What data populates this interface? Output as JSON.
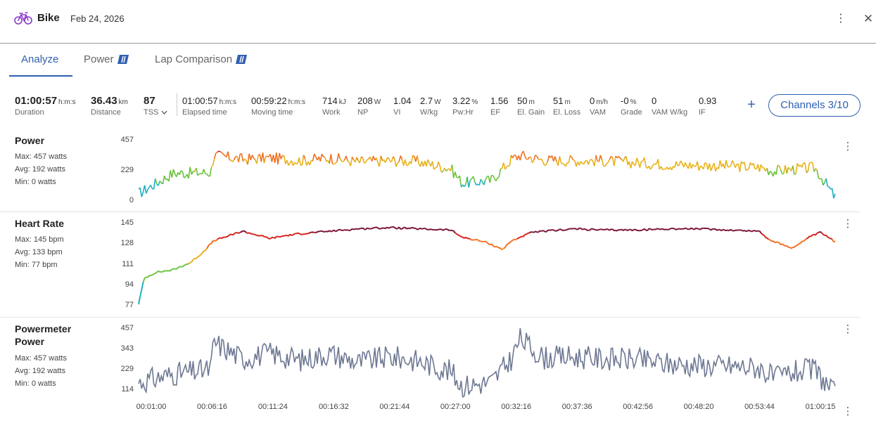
{
  "header": {
    "title": "Bike",
    "date": "Feb 24, 2026",
    "menu_icon": "kebab-icon",
    "close_icon": "close-icon"
  },
  "tabs": [
    {
      "label": "Analyze",
      "active": true
    },
    {
      "label": "Power",
      "premium": true
    },
    {
      "label": "Lap Comparison",
      "premium": true
    }
  ],
  "stats": [
    {
      "value": "01:00:57",
      "unit": "h:m:s",
      "label": "Duration",
      "big": true
    },
    {
      "value": "36.43",
      "unit": "km",
      "label": "Distance",
      "big": true
    },
    {
      "value": "87",
      "unit": "",
      "label": "TSS",
      "big": true
    },
    {
      "value": "01:00:57",
      "unit": "h:m:s",
      "label": "Elapsed time"
    },
    {
      "value": "00:59:22",
      "unit": "h:m:s",
      "label": "Moving time"
    },
    {
      "value": "714",
      "unit": "kJ",
      "label": "Work"
    },
    {
      "value": "208",
      "unit": "W",
      "label": "NP"
    },
    {
      "value": "1.04",
      "unit": "",
      "label": "VI"
    },
    {
      "value": "2.7",
      "unit": "W",
      "label": "W/kg"
    },
    {
      "value": "3.22",
      "unit": "%",
      "label": "Pw:Hr"
    },
    {
      "value": "1.56",
      "unit": "",
      "label": "EF"
    },
    {
      "value": "50",
      "unit": "m",
      "label": "El. Gain"
    },
    {
      "value": "51",
      "unit": "m",
      "label": "El. Loss"
    },
    {
      "value": "0",
      "unit": "m/h",
      "label": "VAM"
    },
    {
      "value": "-0",
      "unit": "%",
      "label": "Grade"
    },
    {
      "value": "0",
      "unit": "",
      "label": "VAM W/kg"
    },
    {
      "value": "0.93",
      "unit": "",
      "label": "IF"
    }
  ],
  "channels_button": "Channels 3/10",
  "colors": {
    "accent": "#2f5fb0",
    "powermeter_line": "#6e7893"
  },
  "chart_data": [
    {
      "type": "line",
      "title": "Power",
      "stats": {
        "max": "Max: 457 watts",
        "avg": "Avg: 192 watts",
        "min": "Min: 0 watts"
      },
      "yticks": [
        "457",
        "229",
        "0"
      ],
      "ylim": [
        0,
        457
      ],
      "x": [
        "0:01",
        "3:00",
        "6:16",
        "6:30",
        "9:00",
        "11:24",
        "14:00",
        "16:32",
        "19:00",
        "21:44",
        "24:00",
        "27:00",
        "28:00",
        "30:30",
        "32:16",
        "33:00",
        "35:00",
        "37:36",
        "40:00",
        "42:56",
        "46:00",
        "48:20",
        "51:00",
        "53:44",
        "55:00",
        "56:30",
        "58:30",
        "1:00:15"
      ],
      "series": [
        {
          "name": "Power",
          "colored_by_zone": true,
          "values": [
            50,
            205,
            210,
            340,
            310,
            320,
            300,
            320,
            290,
            300,
            295,
            240,
            130,
            150,
            310,
            340,
            305,
            300,
            300,
            285,
            270,
            265,
            260,
            250,
            220,
            235,
            245,
            20
          ]
        }
      ]
    },
    {
      "type": "line",
      "title": "Heart Rate",
      "stats": {
        "max": "Max: 145 bpm",
        "avg": "Avg: 133 bpm",
        "min": "Min: 77 bpm"
      },
      "yticks": [
        "145",
        "128",
        "111",
        "94",
        "77"
      ],
      "ylim": [
        77,
        145
      ],
      "x": [
        "0:01",
        "0:30",
        "1:30",
        "3:00",
        "4:30",
        "5:30",
        "6:30",
        "9:00",
        "11:24",
        "12:30",
        "14:00",
        "16:32",
        "19:00",
        "21:44",
        "24:00",
        "27:00",
        "28:00",
        "30:00",
        "31:30",
        "32:16",
        "34:00",
        "37:36",
        "40:00",
        "42:56",
        "46:00",
        "48:20",
        "51:00",
        "53:44",
        "54:30",
        "56:30",
        "58:00",
        "59:00",
        "1:00:15"
      ],
      "series": [
        {
          "name": "Heart Rate",
          "colored_by_zone": true,
          "values": [
            78,
            99,
            104,
            106,
            112,
            120,
            130,
            138,
            132,
            134,
            136,
            138,
            140,
            141,
            140,
            139,
            133,
            129,
            123,
            130,
            137,
            140,
            139,
            139,
            140,
            140,
            139,
            138,
            131,
            124,
            133,
            137,
            129
          ]
        }
      ]
    },
    {
      "type": "line",
      "title": "Powermeter Power",
      "stats": {
        "max": "Max: 457 watts",
        "avg": "Avg: 192 watts",
        "min": "Min: 0 watts"
      },
      "yticks": [
        "457",
        "343",
        "229",
        "114"
      ],
      "ylim": [
        80,
        457
      ],
      "x": [
        "0:01",
        "3:00",
        "6:16",
        "6:30",
        "9:00",
        "11:24",
        "14:00",
        "16:32",
        "19:00",
        "21:44",
        "24:00",
        "27:00",
        "28:00",
        "30:30",
        "32:16",
        "33:00",
        "35:00",
        "37:36",
        "40:00",
        "42:56",
        "46:00",
        "48:20",
        "51:00",
        "53:44",
        "55:00",
        "56:30",
        "58:30",
        "1:00:15"
      ],
      "series": [
        {
          "name": "Powermeter Power",
          "values": [
            160,
            205,
            230,
            380,
            290,
            320,
            280,
            320,
            270,
            300,
            280,
            220,
            140,
            160,
            290,
            400,
            295,
            300,
            290,
            285,
            260,
            255,
            250,
            240,
            180,
            215,
            230,
            90
          ]
        }
      ]
    }
  ],
  "xticks": [
    "00:01:00",
    "00:06:16",
    "00:11:24",
    "00:16:32",
    "00:21:44",
    "00:27:00",
    "00:32:16",
    "00:37:36",
    "00:42:56",
    "00:48:20",
    "00:53:44",
    "01:00:15"
  ]
}
